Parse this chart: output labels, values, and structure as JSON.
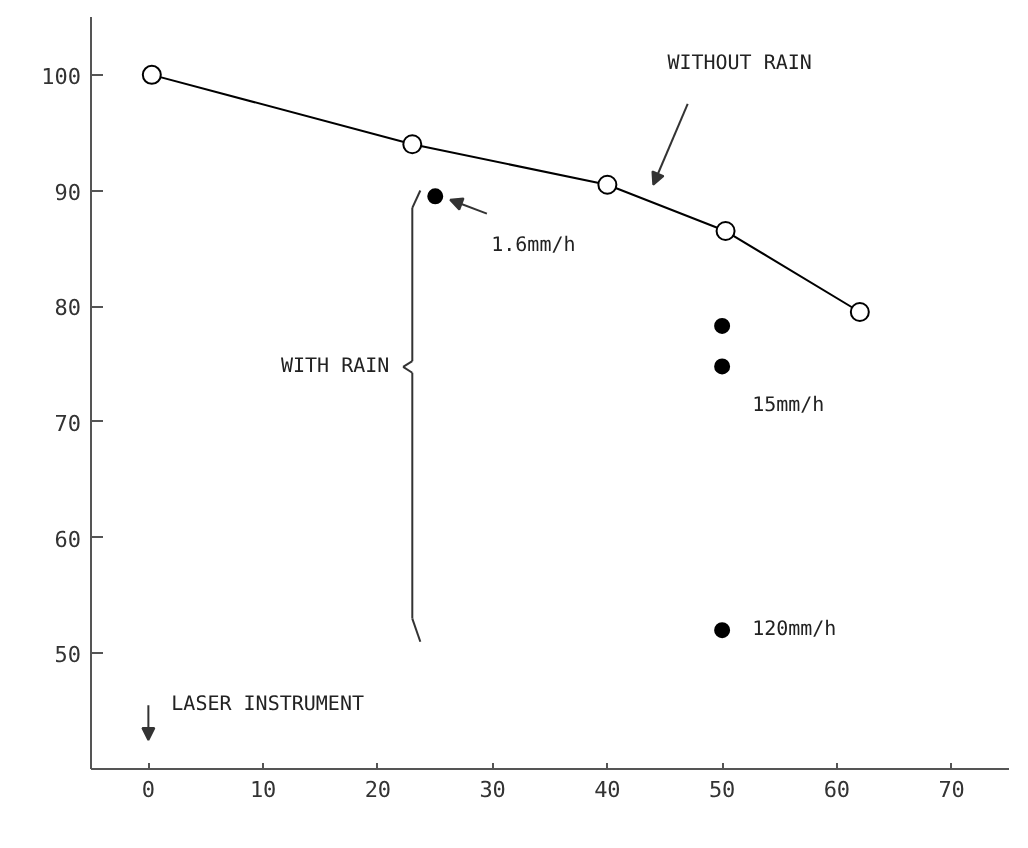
{
  "chart_data": {
    "type": "line",
    "xlim": [
      -5,
      75
    ],
    "xticks": [
      0,
      10,
      20,
      30,
      40,
      50,
      60,
      70
    ],
    "ylim": [
      40,
      105
    ],
    "yticks": [
      50,
      60,
      70,
      80,
      90,
      100
    ],
    "grid": false,
    "marker": "circle",
    "line_style": "solid",
    "series": [
      {
        "color": "#000000",
        "x": [
          0.3,
          23,
          40,
          50.3,
          62
        ],
        "values": [
          100,
          94,
          90.5,
          86.5,
          79.5
        ]
      },
      {
        "type": "scatter",
        "color": "#000000",
        "x": [
          25,
          50,
          50,
          50
        ],
        "values": [
          89.5,
          78.3,
          74.8,
          52
        ]
      }
    ],
    "annotations": [
      "WITHOUT RAIN",
      "WITH RAIN",
      "1.6mm/h",
      "15mm/h",
      "120mm/h",
      "LASER INSTRUMENT"
    ]
  }
}
